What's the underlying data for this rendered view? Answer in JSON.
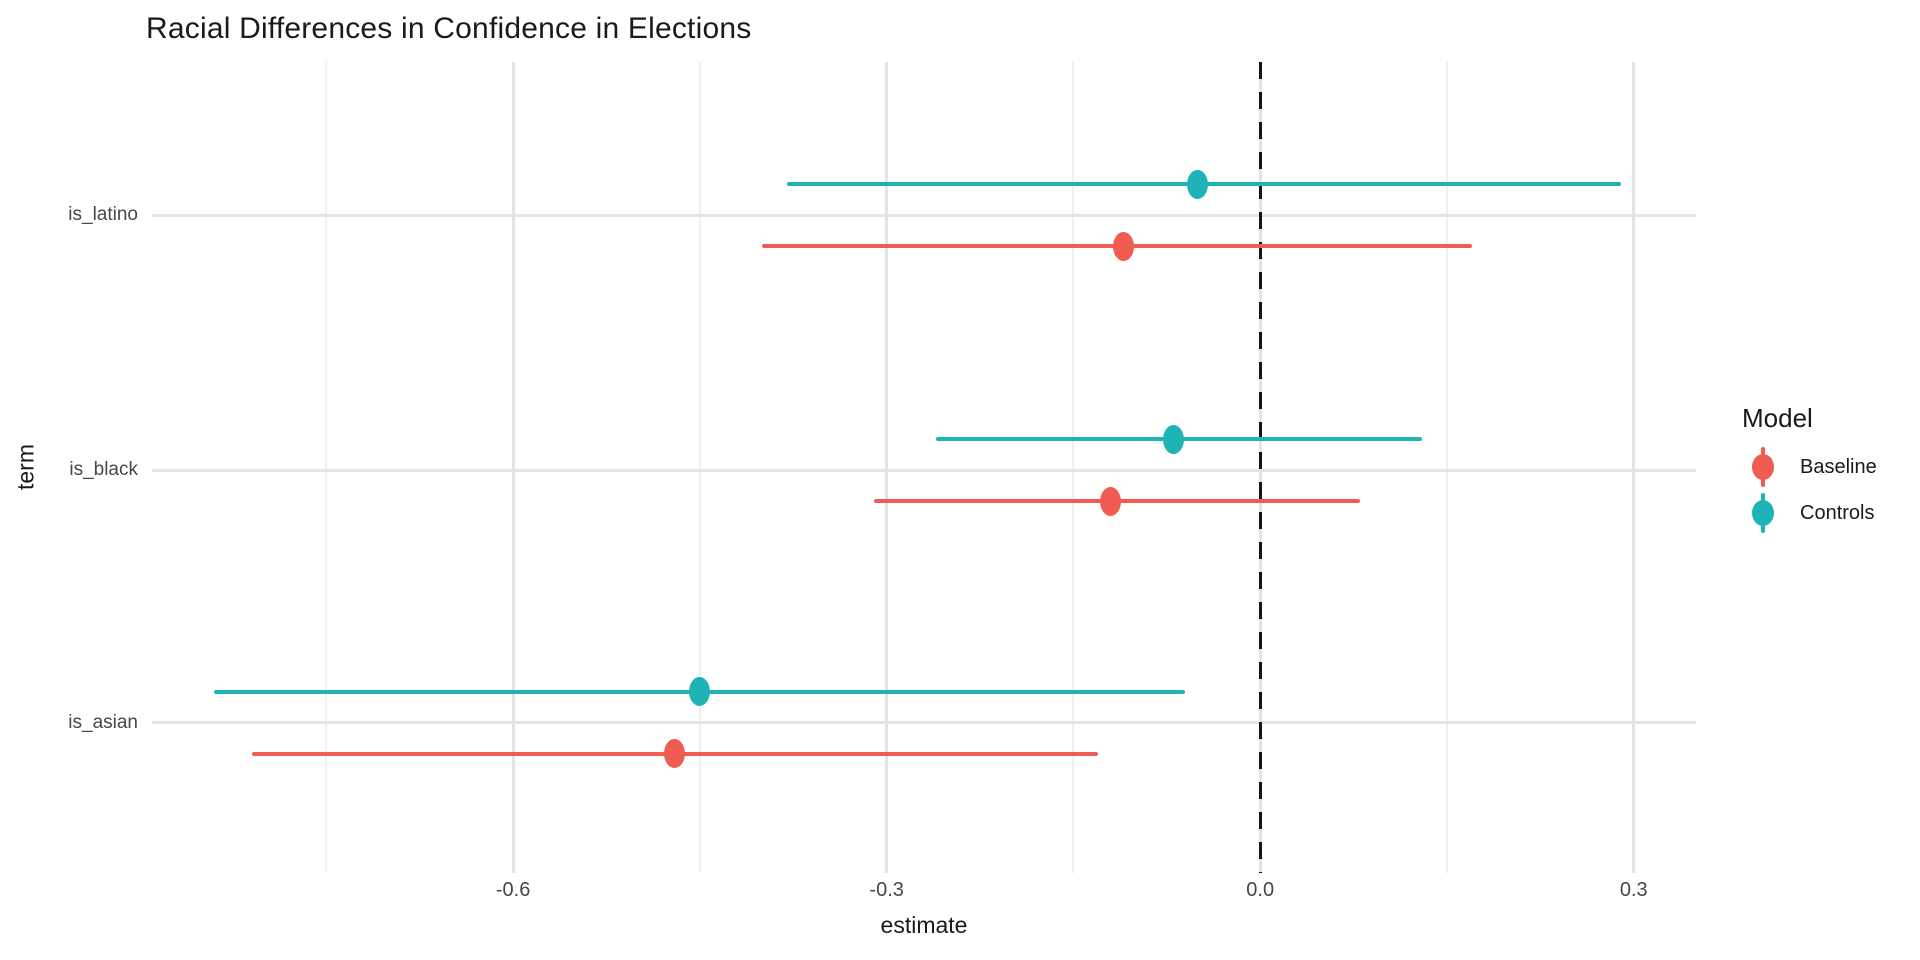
{
  "chart_data": {
    "type": "scatter",
    "subtype": "coefficient-pointrange",
    "title": "Racial Differences in Confidence in Elections",
    "xlabel": "estimate",
    "ylabel": "term",
    "xlim": [
      -0.89,
      0.35
    ],
    "x_ticks": [
      -0.6,
      -0.3,
      0.0,
      0.3
    ],
    "x_tick_labels": [
      "-0.6",
      "-0.3",
      "0.0",
      "0.3"
    ],
    "x_minor_ticks": [
      -0.75,
      -0.45,
      -0.15,
      0.15
    ],
    "terms": [
      "is_latino",
      "is_black",
      "is_asian"
    ],
    "reference_line": 0.0,
    "grid": "on",
    "legend": {
      "title": "Model",
      "position": "right",
      "items": [
        {
          "label": "Baseline",
          "color": "#f05c52"
        },
        {
          "label": "Controls",
          "color": "#1eb4b6"
        }
      ]
    },
    "series": [
      {
        "name": "Controls",
        "color": "#1eb4b6",
        "points": [
          {
            "term": "is_latino",
            "estimate": -0.05,
            "conf_low": -0.38,
            "conf_high": 0.29
          },
          {
            "term": "is_black",
            "estimate": -0.07,
            "conf_low": -0.26,
            "conf_high": 0.13
          },
          {
            "term": "is_asian",
            "estimate": -0.45,
            "conf_low": -0.84,
            "conf_high": -0.06
          }
        ]
      },
      {
        "name": "Baseline",
        "color": "#f05c52",
        "points": [
          {
            "term": "is_latino",
            "estimate": -0.11,
            "conf_low": -0.4,
            "conf_high": 0.17
          },
          {
            "term": "is_black",
            "estimate": -0.12,
            "conf_low": -0.31,
            "conf_high": 0.08
          },
          {
            "term": "is_asian",
            "estimate": -0.47,
            "conf_low": -0.81,
            "conf_high": -0.13
          }
        ]
      }
    ]
  }
}
